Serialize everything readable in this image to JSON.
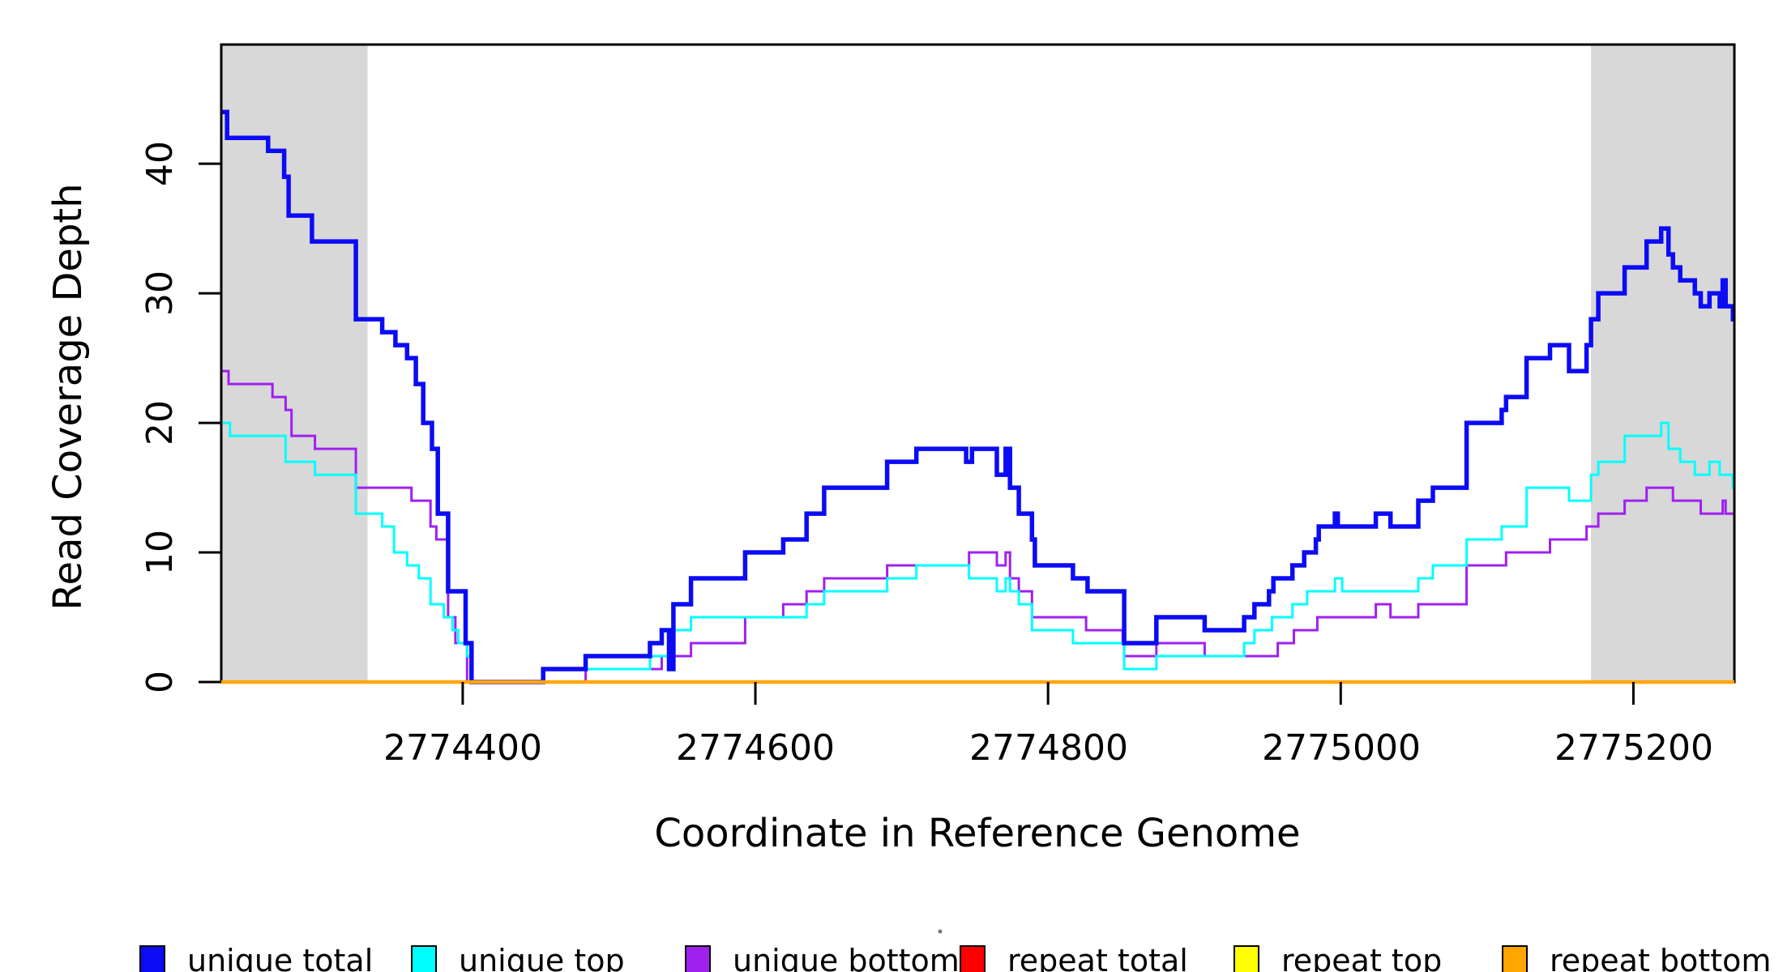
{
  "chart_data": {
    "type": "line",
    "subtype": "step-coverage",
    "xlabel": "Coordinate in Reference Genome",
    "ylabel": "Read Coverage Depth",
    "xlim": [
      2774235,
      2775269
    ],
    "ylim": [
      0,
      49.2
    ],
    "grid": false,
    "x_ticks": [
      2774400,
      2774600,
      2774800,
      2775000,
      2775200
    ],
    "x_tick_labels": [
      "2774400",
      "2774600",
      "2774800",
      "2775000",
      "2775200"
    ],
    "y_ticks": [
      0,
      10,
      20,
      30,
      40
    ],
    "y_tick_labels": [
      "0",
      "10",
      "20",
      "30",
      "40"
    ],
    "shaded_regions": [
      {
        "x0": 2774235,
        "x1": 2774335,
        "color": "#d8d8d8"
      },
      {
        "x0": 2775171,
        "x1": 2775269,
        "color": "#d8d8d8"
      }
    ],
    "series": [
      {
        "name": "repeat total",
        "color": "#ff0000",
        "width": 3,
        "values": [
          [
            2774235,
            0
          ]
        ]
      },
      {
        "name": "repeat top",
        "color": "#ffff00",
        "width": 3,
        "values": [
          [
            2774235,
            0
          ]
        ]
      },
      {
        "name": "unique bottom",
        "color": "#a020f0",
        "width": 3,
        "values": [
          [
            2774235,
            24
          ],
          [
            2774240,
            23
          ],
          [
            2774270,
            22
          ],
          [
            2774279,
            21
          ],
          [
            2774283,
            19
          ],
          [
            2774299,
            18
          ],
          [
            2774327,
            15
          ],
          [
            2774365,
            14
          ],
          [
            2774378,
            12
          ],
          [
            2774382,
            11
          ],
          [
            2774390,
            5
          ],
          [
            2774395,
            3
          ],
          [
            2774403,
            0
          ],
          [
            2774484,
            1
          ],
          [
            2774536,
            2
          ],
          [
            2774556,
            3
          ],
          [
            2774593,
            5
          ],
          [
            2774619,
            6
          ],
          [
            2774635,
            7
          ],
          [
            2774647,
            8
          ],
          [
            2774690,
            9
          ],
          [
            2774746,
            10
          ],
          [
            2774765,
            9
          ],
          [
            2774771,
            10
          ],
          [
            2774774,
            8
          ],
          [
            2774780,
            7
          ],
          [
            2774789,
            5
          ],
          [
            2774826,
            4
          ],
          [
            2774851,
            3
          ],
          [
            2774852,
            2
          ],
          [
            2774874,
            3
          ],
          [
            2774907,
            2
          ],
          [
            2774957,
            3
          ],
          [
            2774968,
            4
          ],
          [
            2774984,
            5
          ],
          [
            2775024,
            6
          ],
          [
            2775034,
            5
          ],
          [
            2775053,
            6
          ],
          [
            2775086,
            9
          ],
          [
            2775113,
            10
          ],
          [
            2775143,
            11
          ],
          [
            2775168,
            12
          ],
          [
            2775176,
            13
          ],
          [
            2775194,
            14
          ],
          [
            2775209,
            15
          ],
          [
            2775227,
            14
          ],
          [
            2775246,
            13
          ],
          [
            2775252,
            13
          ],
          [
            2775261,
            14
          ],
          [
            2775263,
            13
          ]
        ]
      },
      {
        "name": "unique top",
        "color": "#00ffff",
        "width": 3,
        "values": [
          [
            2774235,
            20
          ],
          [
            2774241,
            19
          ],
          [
            2774279,
            17
          ],
          [
            2774299,
            16
          ],
          [
            2774327,
            13
          ],
          [
            2774345,
            12
          ],
          [
            2774353,
            10
          ],
          [
            2774362,
            9
          ],
          [
            2774370,
            8
          ],
          [
            2774378,
            6
          ],
          [
            2774387,
            5
          ],
          [
            2774393,
            4
          ],
          [
            2774397,
            3
          ],
          [
            2774403,
            2
          ],
          [
            2774406,
            0
          ],
          [
            2774455,
            1
          ],
          [
            2774528,
            2
          ],
          [
            2774541,
            1
          ],
          [
            2774544,
            4
          ],
          [
            2774556,
            5
          ],
          [
            2774635,
            6
          ],
          [
            2774647,
            7
          ],
          [
            2774690,
            8
          ],
          [
            2774710,
            9
          ],
          [
            2774746,
            8
          ],
          [
            2774765,
            7
          ],
          [
            2774771,
            8
          ],
          [
            2774774,
            7
          ],
          [
            2774780,
            6
          ],
          [
            2774789,
            4
          ],
          [
            2774817,
            3
          ],
          [
            2774852,
            1
          ],
          [
            2774874,
            2
          ],
          [
            2774934,
            3
          ],
          [
            2774941,
            4
          ],
          [
            2774953,
            5
          ],
          [
            2774967,
            6
          ],
          [
            2774977,
            7
          ],
          [
            2774996,
            8
          ],
          [
            2775001,
            7
          ],
          [
            2775053,
            8
          ],
          [
            2775063,
            9
          ],
          [
            2775086,
            11
          ],
          [
            2775110,
            12
          ],
          [
            2775127,
            15
          ],
          [
            2775156,
            14
          ],
          [
            2775171,
            16
          ],
          [
            2775176,
            17
          ],
          [
            2775194,
            19
          ],
          [
            2775219,
            20
          ],
          [
            2775224,
            18
          ],
          [
            2775232,
            17
          ],
          [
            2775242,
            16
          ],
          [
            2775252,
            17
          ],
          [
            2775259,
            16
          ],
          [
            2775268,
            15
          ]
        ]
      },
      {
        "name": "unique total",
        "color": "#0b0bf5",
        "width": 5.5,
        "values": [
          [
            2774235,
            44
          ],
          [
            2774239,
            42
          ],
          [
            2774267,
            41
          ],
          [
            2774278,
            39
          ],
          [
            2774281,
            36
          ],
          [
            2774297,
            34
          ],
          [
            2774327,
            28
          ],
          [
            2774345,
            27
          ],
          [
            2774354,
            26
          ],
          [
            2774362,
            25
          ],
          [
            2774368,
            23
          ],
          [
            2774373,
            20
          ],
          [
            2774379,
            18
          ],
          [
            2774383,
            13
          ],
          [
            2774390,
            7
          ],
          [
            2774402,
            3
          ],
          [
            2774406,
            0
          ],
          [
            2774455,
            1
          ],
          [
            2774484,
            2
          ],
          [
            2774528,
            3
          ],
          [
            2774536,
            4
          ],
          [
            2774541,
            1
          ],
          [
            2774544,
            6
          ],
          [
            2774556,
            8
          ],
          [
            2774593,
            10
          ],
          [
            2774619,
            11
          ],
          [
            2774635,
            13
          ],
          [
            2774647,
            15
          ],
          [
            2774690,
            17
          ],
          [
            2774710,
            18
          ],
          [
            2774744,
            17
          ],
          [
            2774748,
            18
          ],
          [
            2774765,
            16
          ],
          [
            2774771,
            18
          ],
          [
            2774774,
            15
          ],
          [
            2774780,
            13
          ],
          [
            2774789,
            11
          ],
          [
            2774791,
            9
          ],
          [
            2774817,
            8
          ],
          [
            2774827,
            7
          ],
          [
            2774852,
            3
          ],
          [
            2774874,
            5
          ],
          [
            2774907,
            4
          ],
          [
            2774934,
            5
          ],
          [
            2774941,
            6
          ],
          [
            2774951,
            7
          ],
          [
            2774954,
            8
          ],
          [
            2774967,
            9
          ],
          [
            2774975,
            10
          ],
          [
            2774983,
            11
          ],
          [
            2774985,
            12
          ],
          [
            2774996,
            13
          ],
          [
            2774998,
            12
          ],
          [
            2775024,
            13
          ],
          [
            2775034,
            12
          ],
          [
            2775053,
            14
          ],
          [
            2775063,
            15
          ],
          [
            2775086,
            20
          ],
          [
            2775110,
            21
          ],
          [
            2775113,
            22
          ],
          [
            2775127,
            25
          ],
          [
            2775143,
            26
          ],
          [
            2775156,
            24
          ],
          [
            2775168,
            26
          ],
          [
            2775171,
            28
          ],
          [
            2775176,
            30
          ],
          [
            2775194,
            32
          ],
          [
            2775209,
            34
          ],
          [
            2775219,
            35
          ],
          [
            2775224,
            33
          ],
          [
            2775227,
            32
          ],
          [
            2775232,
            31
          ],
          [
            2775242,
            30
          ],
          [
            2775246,
            29
          ],
          [
            2775252,
            30
          ],
          [
            2775259,
            29
          ],
          [
            2775261,
            31
          ],
          [
            2775263,
            29
          ],
          [
            2775268,
            28
          ]
        ]
      },
      {
        "name": "repeat bottom",
        "color": "#ffa500",
        "width": 4.5,
        "values": [
          [
            2774235,
            0
          ]
        ]
      }
    ]
  },
  "axes": {
    "x_title": "Coordinate in Reference Genome",
    "y_title": "Read Coverage Depth"
  },
  "legend": {
    "items": [
      {
        "label": "unique total",
        "color": "#0b0bf5"
      },
      {
        "label": "unique top",
        "color": "#00ffff"
      },
      {
        "label": "unique bottom",
        "color": "#a020f0"
      },
      {
        "label": "repeat total",
        "color": "#ff0000"
      },
      {
        "label": "repeat top",
        "color": "#ffff00"
      },
      {
        "label": "repeat bottom",
        "color": "#ffa500"
      }
    ]
  }
}
